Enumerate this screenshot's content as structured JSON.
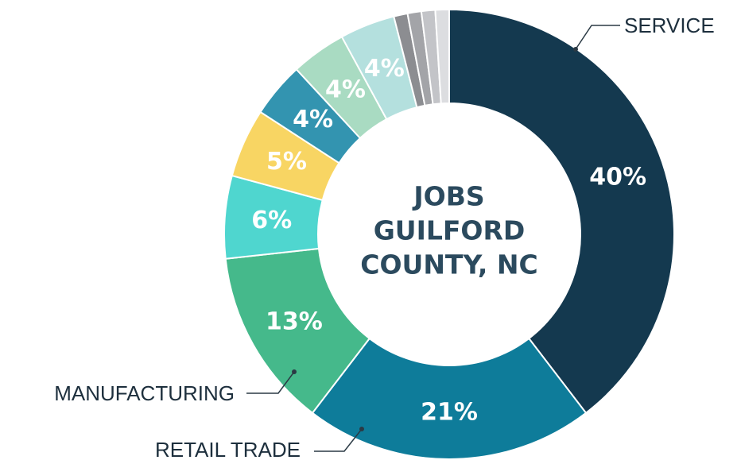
{
  "chart_data": {
    "type": "donut",
    "title": [
      "JOBS",
      "GUILFORD",
      "COUNTY, NC"
    ],
    "categories": [
      "SERVICE",
      "RETAIL TRADE",
      "MANUFACTURING",
      null,
      null,
      null,
      null,
      null,
      null,
      null,
      null,
      null
    ],
    "values": [
      40,
      21,
      13,
      6,
      5,
      4,
      4,
      4,
      1,
      1,
      1,
      1
    ],
    "value_labels": [
      "40%",
      "21%",
      "13%",
      "6%",
      "5%",
      "4%",
      "4%",
      "4%",
      null,
      null,
      null,
      null
    ],
    "colors": [
      "#14394f",
      "#0e7c9a",
      "#45b98b",
      "#4fd6cf",
      "#f8d563",
      "#3394b0",
      "#a9dbc2",
      "#b4e0de",
      "#8c8d91",
      "#a3a4a8",
      "#c3c4c8",
      "#dcdde0"
    ]
  }
}
